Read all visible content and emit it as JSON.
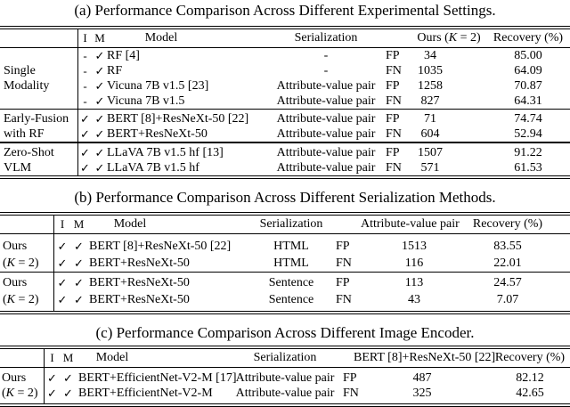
{
  "page": {
    "background": "#ffffff",
    "text_color": "#000000"
  },
  "icons": {
    "check": "✓",
    "dash": "-"
  },
  "captions": {
    "a": "(a) Performance Comparison Across Different Experimental Settings.",
    "b": "(b) Performance Comparison Across Different Serialization Methods.",
    "c": "(c) Performance Comparison Across Different Image Encoder."
  },
  "tables": {
    "a": {
      "header": {
        "i": "I",
        "m": "M",
        "model": "Model",
        "ser": "Serialization",
        "cnt_pre": "Ours (",
        "cnt_k": "K",
        "cnt_post": " = 2)",
        "rec": "Recovery (%)"
      },
      "rows": [
        {
          "grp": "",
          "i": "-",
          "m": "✓",
          "model": "RF [4]",
          "ser": "-",
          "fpfn": "FP",
          "cnt": "34",
          "rec": "85.00"
        },
        {
          "grp": "Single",
          "i": "-",
          "m": "✓",
          "model": "RF",
          "ser": "-",
          "fpfn": "FN",
          "cnt": "1035",
          "rec": "64.09"
        },
        {
          "grp": "Modality",
          "i": "-",
          "m": "✓",
          "model": "Vicuna 7B v1.5 [23]",
          "ser": "Attribute-value pair",
          "fpfn": "FP",
          "cnt": "1258",
          "rec": "70.87"
        },
        {
          "grp": "",
          "i": "-",
          "m": "✓",
          "model": "Vicuna 7B v1.5",
          "ser": "Attribute-value pair",
          "fpfn": "FN",
          "cnt": "827",
          "rec": "64.31"
        },
        {
          "grp": "Early-Fusion",
          "i": "✓",
          "m": "✓",
          "model": "BERT [8]+ResNeXt-50 [22]",
          "ser": "Attribute-value pair",
          "fpfn": "FP",
          "cnt": "71",
          "rec": "74.74"
        },
        {
          "grp": "with RF",
          "i": "✓",
          "m": "✓",
          "model": "BERT+ResNeXt-50",
          "ser": "Attribute-value pair",
          "fpfn": "FN",
          "cnt": "604",
          "rec": "52.94"
        },
        {
          "grp": "Zero-Shot",
          "i": "✓",
          "m": "✓",
          "model": "LLaVA 7B v1.5 hf [13]",
          "ser": "Attribute-value pair",
          "fpfn": "FP",
          "cnt": "1507",
          "rec": "91.22"
        },
        {
          "grp": "VLM",
          "i": "✓",
          "m": "✓",
          "model": "LLaVA 7B v1.5 hf",
          "ser": "Attribute-value pair",
          "fpfn": "FN",
          "cnt": "571",
          "rec": "61.53"
        }
      ]
    },
    "b": {
      "header": {
        "i": "I",
        "m": "M",
        "model": "Model",
        "ser": "Serialization",
        "cnt": "Attribute-value pair",
        "rec": "Recovery (%)"
      },
      "rows": [
        {
          "grp": "Ours",
          "i": "✓",
          "m": "✓",
          "model": "BERT [8]+ResNeXt-50 [22]",
          "ser": "HTML",
          "fpfn": "FP",
          "cnt": "1513",
          "rec": "83.55"
        },
        {
          "grp_pre": "(",
          "grp_k": "K",
          "grp_post": " = 2)",
          "i": "✓",
          "m": "✓",
          "model": "BERT+ResNeXt-50",
          "ser": "HTML",
          "fpfn": "FN",
          "cnt": "116",
          "rec": "22.01"
        },
        {
          "grp": "Ours",
          "i": "✓",
          "m": "✓",
          "model": "BERT+ResNeXt-50",
          "ser": "Sentence",
          "fpfn": "FP",
          "cnt": "113",
          "rec": "24.57"
        },
        {
          "grp_pre": "(",
          "grp_k": "K",
          "grp_post": " = 2)",
          "i": "✓",
          "m": "✓",
          "model": "BERT+ResNeXt-50",
          "ser": "Sentence",
          "fpfn": "FN",
          "cnt": "43",
          "rec": "7.07"
        }
      ]
    },
    "c": {
      "header": {
        "i": "I",
        "m": "M",
        "model": "Model",
        "ser": "Serialization",
        "cnt": "BERT [8]+ResNeXt-50 [22]",
        "rec": "Recovery (%)"
      },
      "rows": [
        {
          "grp": "Ours",
          "i": "✓",
          "m": "✓",
          "model": "BERT+EfficientNet-V2-M [17]",
          "ser": "Attribute-value pair",
          "fpfn": "FP",
          "cnt": "487",
          "rec": "82.12"
        },
        {
          "grp_pre": "(",
          "grp_k": "K",
          "grp_post": " = 2)",
          "i": "✓",
          "m": "✓",
          "model": "BERT+EfficientNet-V2-M",
          "ser": "Attribute-value pair",
          "fpfn": "FN",
          "cnt": "325",
          "rec": "42.65"
        }
      ]
    }
  }
}
